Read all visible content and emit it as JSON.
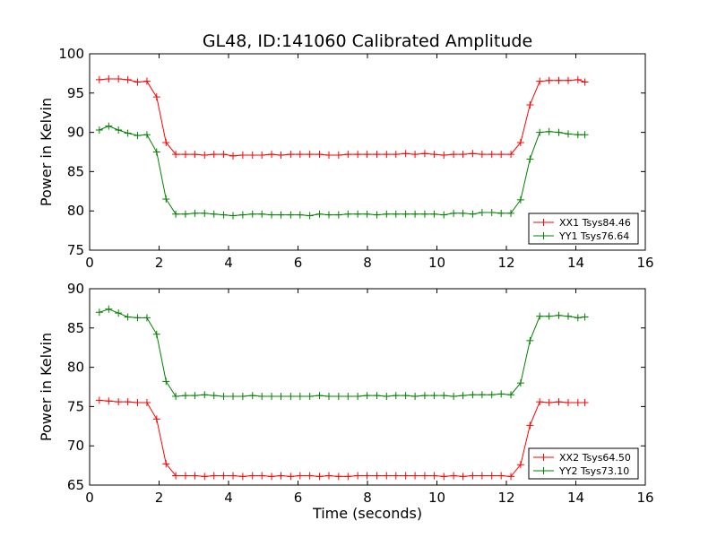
{
  "title": "GL48, ID:141060 Calibrated Amplitude",
  "xlabel": "Time (seconds)",
  "chart_data": [
    {
      "type": "line",
      "ylabel": "Power in Kelvin",
      "xlim": [
        0,
        16
      ],
      "ylim": [
        75,
        100
      ],
      "xticks": [
        0,
        2,
        4,
        6,
        8,
        10,
        12,
        14,
        16
      ],
      "yticks": [
        75,
        80,
        85,
        90,
        95,
        100
      ],
      "legend_position": "lower-right",
      "x": [
        0.28,
        0.55,
        0.83,
        1.1,
        1.38,
        1.65,
        1.93,
        2.2,
        2.48,
        2.76,
        3.03,
        3.31,
        3.58,
        3.86,
        4.13,
        4.41,
        4.69,
        4.96,
        5.24,
        5.51,
        5.79,
        6.06,
        6.34,
        6.62,
        6.89,
        7.17,
        7.44,
        7.72,
        7.99,
        8.27,
        8.55,
        8.82,
        9.1,
        9.37,
        9.65,
        9.92,
        10.2,
        10.48,
        10.75,
        11.03,
        11.3,
        11.58,
        11.85,
        12.13,
        12.41,
        12.68,
        12.96,
        13.23,
        13.51,
        13.78,
        14.06,
        14.26
      ],
      "series": [
        {
          "name": "XX1 Tsys84.46",
          "color": "#ff0000",
          "values": [
            96.7,
            96.8,
            96.8,
            96.7,
            96.4,
            96.5,
            94.5,
            88.7,
            87.2,
            87.2,
            87.2,
            87.1,
            87.2,
            87.2,
            87.0,
            87.1,
            87.1,
            87.1,
            87.2,
            87.1,
            87.2,
            87.2,
            87.2,
            87.2,
            87.1,
            87.1,
            87.2,
            87.2,
            87.2,
            87.2,
            87.2,
            87.2,
            87.3,
            87.2,
            87.3,
            87.2,
            87.1,
            87.2,
            87.2,
            87.3,
            87.2,
            87.2,
            87.2,
            87.2,
            88.7,
            93.5,
            96.5,
            96.6,
            96.6,
            96.6,
            96.7,
            96.4
          ]
        },
        {
          "name": "YY1 Tsys76.64",
          "color": "#008000",
          "values": [
            90.3,
            90.8,
            90.3,
            89.9,
            89.6,
            89.7,
            87.5,
            81.5,
            79.6,
            79.6,
            79.7,
            79.7,
            79.6,
            79.5,
            79.4,
            79.5,
            79.6,
            79.6,
            79.5,
            79.5,
            79.5,
            79.5,
            79.4,
            79.6,
            79.5,
            79.5,
            79.6,
            79.6,
            79.6,
            79.5,
            79.6,
            79.6,
            79.6,
            79.6,
            79.6,
            79.6,
            79.5,
            79.7,
            79.7,
            79.6,
            79.8,
            79.8,
            79.7,
            79.7,
            81.4,
            86.6,
            90.0,
            90.1,
            90.0,
            89.8,
            89.7,
            89.7
          ]
        }
      ]
    },
    {
      "type": "line",
      "ylabel": "Power in Kelvin",
      "xlim": [
        0,
        16
      ],
      "ylim": [
        65,
        90
      ],
      "xticks": [
        0,
        2,
        4,
        6,
        8,
        10,
        12,
        14,
        16
      ],
      "yticks": [
        65,
        70,
        75,
        80,
        85,
        90
      ],
      "legend_position": "lower-right",
      "x": [
        0.28,
        0.55,
        0.83,
        1.1,
        1.38,
        1.65,
        1.93,
        2.2,
        2.48,
        2.76,
        3.03,
        3.31,
        3.58,
        3.86,
        4.13,
        4.41,
        4.69,
        4.96,
        5.24,
        5.51,
        5.79,
        6.06,
        6.34,
        6.62,
        6.89,
        7.17,
        7.44,
        7.72,
        7.99,
        8.27,
        8.55,
        8.82,
        9.1,
        9.37,
        9.65,
        9.92,
        10.2,
        10.48,
        10.75,
        11.03,
        11.3,
        11.58,
        11.85,
        12.13,
        12.41,
        12.68,
        12.96,
        13.23,
        13.51,
        13.78,
        14.06,
        14.26
      ],
      "series": [
        {
          "name": "XX2 Tsys64.50",
          "color": "#ff0000",
          "values": [
            75.8,
            75.7,
            75.6,
            75.6,
            75.5,
            75.5,
            73.4,
            67.7,
            66.2,
            66.2,
            66.2,
            66.1,
            66.2,
            66.2,
            66.2,
            66.1,
            66.2,
            66.2,
            66.1,
            66.2,
            66.1,
            66.2,
            66.2,
            66.1,
            66.2,
            66.1,
            66.1,
            66.2,
            66.2,
            66.2,
            66.2,
            66.2,
            66.2,
            66.2,
            66.2,
            66.2,
            66.1,
            66.2,
            66.1,
            66.2,
            66.2,
            66.2,
            66.2,
            66.1,
            67.6,
            72.6,
            75.6,
            75.5,
            75.6,
            75.5,
            75.5,
            75.5
          ]
        },
        {
          "name": "YY2 Tsys73.10",
          "color": "#008000",
          "values": [
            87.0,
            87.4,
            86.9,
            86.4,
            86.3,
            86.3,
            84.2,
            78.2,
            76.3,
            76.4,
            76.4,
            76.5,
            76.4,
            76.3,
            76.3,
            76.3,
            76.4,
            76.3,
            76.3,
            76.3,
            76.3,
            76.3,
            76.3,
            76.4,
            76.3,
            76.3,
            76.3,
            76.3,
            76.4,
            76.4,
            76.3,
            76.4,
            76.4,
            76.3,
            76.4,
            76.4,
            76.4,
            76.3,
            76.4,
            76.5,
            76.5,
            76.5,
            76.6,
            76.5,
            78.0,
            83.4,
            86.5,
            86.5,
            86.6,
            86.5,
            86.3,
            86.4
          ]
        }
      ]
    }
  ]
}
